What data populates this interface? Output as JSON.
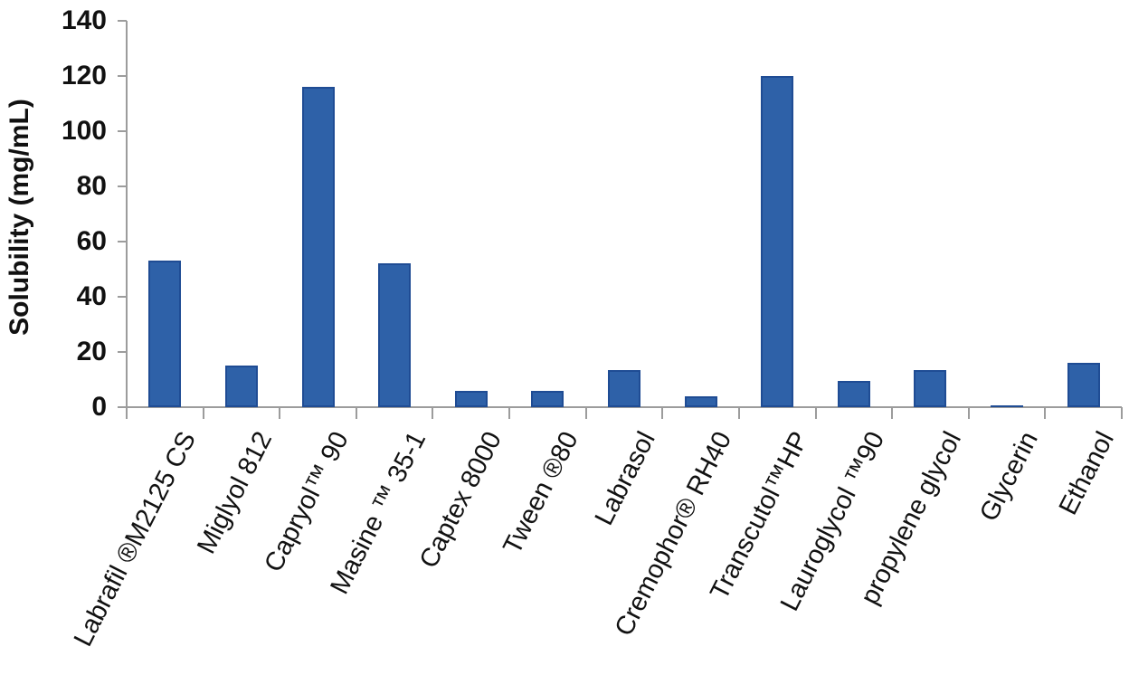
{
  "chart_data": {
    "type": "bar",
    "title": "",
    "ylabel": "Solubility (mg/mL)",
    "xlabel": "",
    "ylim": [
      0,
      140
    ],
    "yticks": [
      0,
      20,
      40,
      60,
      80,
      100,
      120,
      140
    ],
    "grid": false,
    "legend_position": "none",
    "categories": [
      "Labrafil ®M2125 CS",
      "Miglyol 812",
      "Capryol™ 90",
      "Masine ™ 35-1",
      "Captex 8000",
      "Tween ®80",
      "Labrasol",
      "Cremophor® RH40",
      "Transcutol™HP",
      "Lauroglycol ™90",
      "propylene glycol",
      "Glycerin",
      "Ethanol"
    ],
    "values": [
      53,
      15,
      116,
      52,
      6,
      6,
      13.5,
      4,
      120,
      9.5,
      13.5,
      0.8,
      16
    ],
    "colors": {
      "bar_fill": "#2E61A8",
      "bar_border": "#1F4C94",
      "axis": "#9C9C9C",
      "text": "#111111",
      "background": "#FFFFFF"
    }
  }
}
